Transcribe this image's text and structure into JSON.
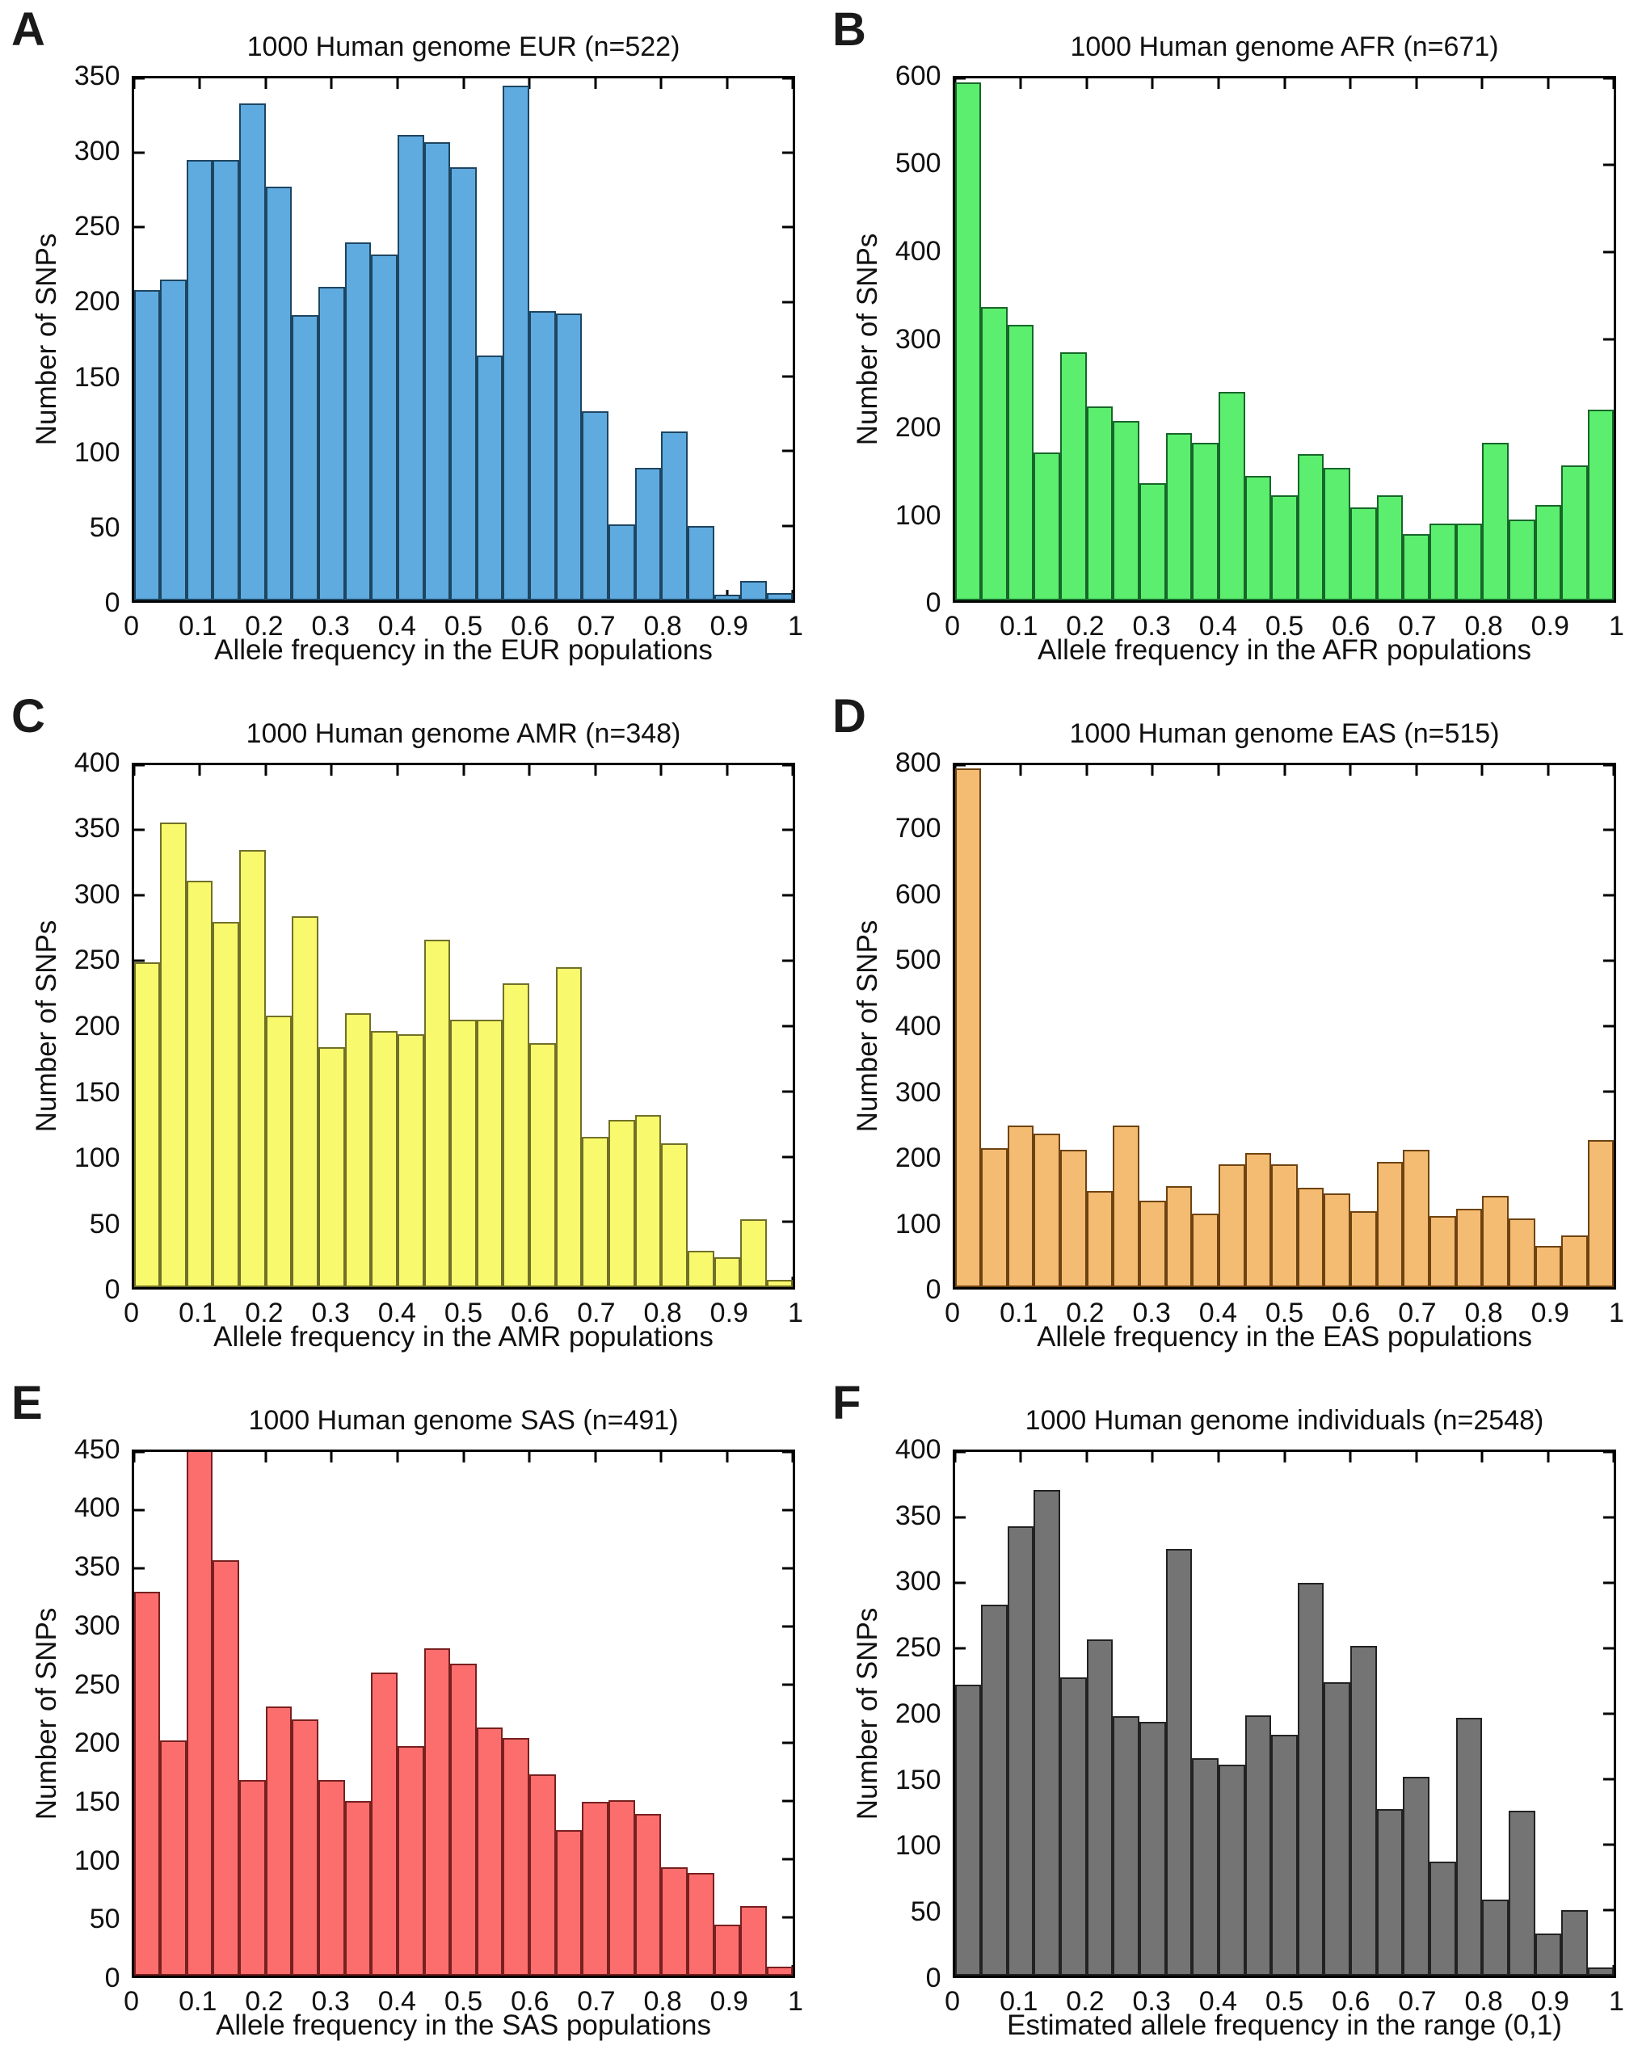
{
  "figure": {
    "ylabel": "Number of SNPs"
  },
  "chart_data": [
    {
      "type": "bar",
      "panel": "A",
      "title": "1000 Human genome EUR (n=522)",
      "xlabel": "Allele frequency in the EUR populations",
      "ylabel": "Number of SNPs",
      "fill_color": "#5fabe0",
      "edge_color": "#1e4560",
      "bin_start": 0,
      "bin_width": 0.04,
      "values": [
        208,
        215,
        295,
        295,
        333,
        277,
        191,
        210,
        240,
        232,
        312,
        307,
        290,
        164,
        345,
        194,
        192,
        127,
        51,
        89,
        113,
        50,
        4,
        13,
        5
      ],
      "xlim": [
        0,
        1
      ],
      "ylim": [
        0,
        350
      ],
      "ytick_step": 50,
      "xticks": [
        0,
        0.1,
        0.2,
        0.3,
        0.4,
        0.5,
        0.6,
        0.7,
        0.8,
        0.9,
        1
      ],
      "xtick_labels": [
        "0",
        "0.1",
        "0.2",
        "0.3",
        "0.4",
        "0.5",
        "0.6",
        "0.7",
        "0.8",
        "0.9",
        "1"
      ],
      "grid": false,
      "legend": null
    },
    {
      "type": "bar",
      "panel": "B",
      "title": "1000 Human genome AFR (n=671)",
      "xlabel": "Allele frequency in the AFR populations",
      "ylabel": "Number of SNPs",
      "fill_color": "#5cee6e",
      "edge_color": "#17662a",
      "bin_start": 0,
      "bin_width": 0.04,
      "values": [
        595,
        337,
        317,
        170,
        285,
        223,
        206,
        135,
        192,
        181,
        240,
        143,
        121,
        168,
        152,
        107,
        121,
        76,
        88,
        88,
        181,
        93,
        110,
        155,
        219
      ],
      "xlim": [
        0,
        1
      ],
      "ylim": [
        0,
        600
      ],
      "ytick_step": 100,
      "xticks": [
        0,
        0.1,
        0.2,
        0.3,
        0.4,
        0.5,
        0.6,
        0.7,
        0.8,
        0.9,
        1
      ],
      "xtick_labels": [
        "0",
        "0.1",
        "0.2",
        "0.3",
        "0.4",
        "0.5",
        "0.6",
        "0.7",
        "0.8",
        "0.9",
        "1"
      ],
      "grid": false,
      "legend": null
    },
    {
      "type": "bar",
      "panel": "C",
      "title": "1000 Human genome AMR (n=348)",
      "xlabel": "Allele frequency in the AMR populations",
      "ylabel": "Number of SNPs",
      "fill_color": "#f9f96d",
      "edge_color": "#70702a",
      "bin_start": 0,
      "bin_width": 0.04,
      "values": [
        249,
        356,
        311,
        280,
        335,
        208,
        284,
        184,
        210,
        196,
        194,
        266,
        205,
        205,
        233,
        187,
        245,
        115,
        128,
        132,
        110,
        28,
        23,
        52,
        6
      ],
      "xlim": [
        0,
        1
      ],
      "ylim": [
        0,
        400
      ],
      "ytick_step": 50,
      "xticks": [
        0,
        0.1,
        0.2,
        0.3,
        0.4,
        0.5,
        0.6,
        0.7,
        0.8,
        0.9,
        1
      ],
      "xtick_labels": [
        "0",
        "0.1",
        "0.2",
        "0.3",
        "0.4",
        "0.5",
        "0.6",
        "0.7",
        "0.8",
        "0.9",
        "1"
      ],
      "grid": false,
      "legend": null
    },
    {
      "type": "bar",
      "panel": "D",
      "title": "1000 Human genome EAS (n=515)",
      "xlabel": "Allele frequency in the EAS populations",
      "ylabel": "Number of SNPs",
      "fill_color": "#f4bb72",
      "edge_color": "#6e4312",
      "bin_start": 0,
      "bin_width": 0.04,
      "values": [
        795,
        213,
        248,
        236,
        211,
        147,
        248,
        133,
        155,
        113,
        188,
        206,
        188,
        153,
        144,
        117,
        192,
        211,
        109,
        120,
        140,
        106,
        64,
        80,
        226
      ],
      "xlim": [
        0,
        1
      ],
      "ylim": [
        0,
        800
      ],
      "ytick_step": 100,
      "xticks": [
        0,
        0.1,
        0.2,
        0.3,
        0.4,
        0.5,
        0.6,
        0.7,
        0.8,
        0.9,
        1
      ],
      "xtick_labels": [
        "0",
        "0.1",
        "0.2",
        "0.3",
        "0.4",
        "0.5",
        "0.6",
        "0.7",
        "0.8",
        "0.9",
        "1"
      ],
      "grid": false,
      "legend": null
    },
    {
      "type": "bar",
      "panel": "E",
      "title": "1000 Human genome SAS (n=491)",
      "xlabel": "Allele frequency in the SAS populations",
      "ylabel": "Number of SNPs",
      "fill_color": "#fc6e6e",
      "edge_color": "#77201f",
      "bin_start": 0,
      "bin_width": 0.04,
      "values": [
        330,
        202,
        455,
        357,
        168,
        231,
        220,
        168,
        150,
        260,
        197,
        281,
        268,
        213,
        204,
        173,
        125,
        149,
        151,
        139,
        93,
        88,
        44,
        60,
        8
      ],
      "xlim": [
        0,
        1
      ],
      "ylim": [
        0,
        450
      ],
      "ytick_step": 50,
      "xticks": [
        0,
        0.1,
        0.2,
        0.3,
        0.4,
        0.5,
        0.6,
        0.7,
        0.8,
        0.9,
        1
      ],
      "xtick_labels": [
        "0",
        "0.1",
        "0.2",
        "0.3",
        "0.4",
        "0.5",
        "0.6",
        "0.7",
        "0.8",
        "0.9",
        "1"
      ],
      "grid": false,
      "legend": null
    },
    {
      "type": "bar",
      "panel": "F",
      "title": "1000 Human genome individuals (n=2548)",
      "xlabel": "Estimated allele frequency in the range (0,1)",
      "ylabel": "Number of SNPs",
      "fill_color": "#747474",
      "edge_color": "#222222",
      "bin_start": 0,
      "bin_width": 0.04,
      "values": [
        222,
        283,
        343,
        371,
        228,
        257,
        198,
        194,
        326,
        166,
        161,
        199,
        184,
        300,
        224,
        252,
        127,
        152,
        87,
        197,
        58,
        126,
        32,
        50,
        6
      ],
      "xlim": [
        0,
        1
      ],
      "ylim": [
        0,
        400
      ],
      "ytick_step": 50,
      "xticks": [
        0,
        0.1,
        0.2,
        0.3,
        0.4,
        0.5,
        0.6,
        0.7,
        0.8,
        0.9,
        1
      ],
      "xtick_labels": [
        "0",
        "0.1",
        "0.2",
        "0.3",
        "0.4",
        "0.5",
        "0.6",
        "0.7",
        "0.8",
        "0.9",
        "1"
      ],
      "grid": false,
      "legend": null
    }
  ]
}
